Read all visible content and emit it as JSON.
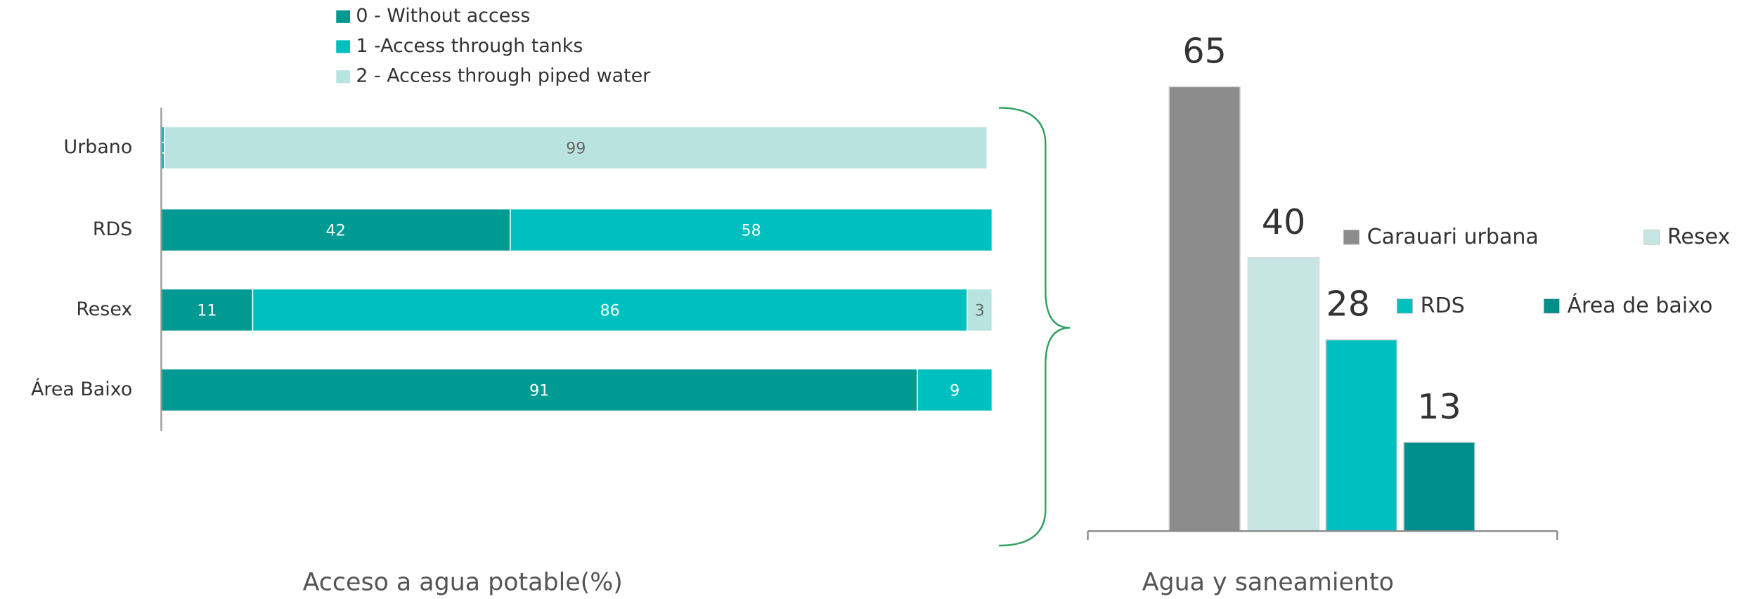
{
  "charts": [
    {
      "type": "stacked_barh",
      "title": "Acceso a agua potable(%)",
      "categories": [
        "Urbano",
        "RDS",
        "Resex",
        "Área Baixo"
      ],
      "xlim": [
        0,
        100
      ],
      "series": [
        {
          "name": "0 - Without access",
          "color": "#009a93",
          "values": [
            null,
            42,
            11,
            91
          ]
        },
        {
          "name": "1 -Access through tanks",
          "color": "#00bfbf",
          "values": [
            0.4,
            58,
            86,
            9
          ],
          "value_labels": [
            "0",
            "58",
            "86",
            "9"
          ]
        },
        {
          "name": "2 - Access through piped water",
          "color": "#b9e3df",
          "values": [
            99,
            null,
            3,
            null
          ]
        }
      ]
    },
    {
      "type": "bar",
      "title": "Agua y saneamiento",
      "categories": [
        "Carauari urbana",
        "Resex",
        "RDS",
        "Área de baixo"
      ],
      "values": [
        65,
        40,
        28,
        13
      ],
      "colors": [
        "#8c8c8c",
        "#c5e6e3",
        "#00bfbf",
        "#008f8a"
      ],
      "ylim": [
        0,
        70
      ]
    }
  ]
}
